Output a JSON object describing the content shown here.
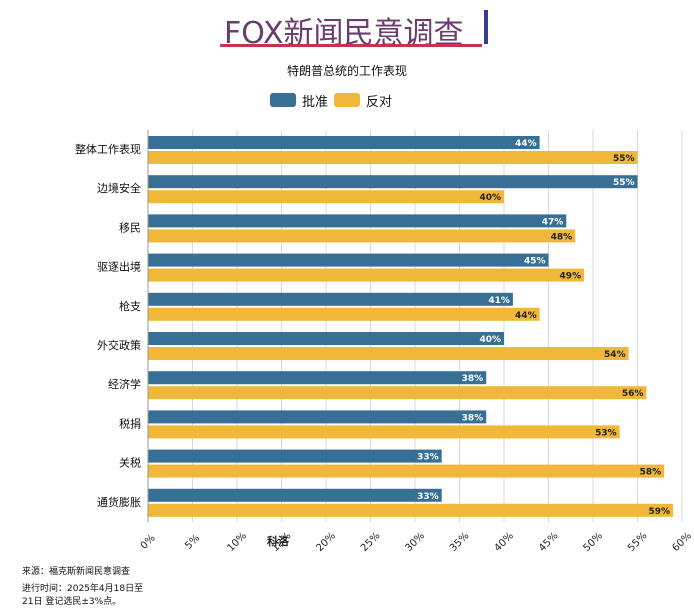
{
  "page": {
    "title": "FOX新闻民意调查",
    "source": "来源：福克斯新闻民意调查",
    "period_line1": "进行时间：2025年4月18日至",
    "period_line2": "21日 登记选民±3%点。"
  },
  "colors": {
    "approve": "#376f95",
    "disapprove": "#f0b739",
    "grid": "#d8d8d8"
  },
  "chart_data": {
    "type": "bar",
    "orientation": "horizontal",
    "title": "特朗普总统的工作表现",
    "categories": [
      "整体工作表现",
      "边境安全",
      "移民",
      "驱逐出境",
      "枪支",
      "外交政策",
      "经济学",
      "税捐",
      "关税",
      "通货膨胀"
    ],
    "series": [
      {
        "name": "批准",
        "values": [
          44,
          55,
          47,
          45,
          41,
          40,
          38,
          38,
          33,
          33
        ]
      },
      {
        "name": "反对",
        "values": [
          55,
          40,
          48,
          49,
          44,
          54,
          56,
          53,
          58,
          59
        ]
      }
    ],
    "xlim": [
      0,
      60
    ],
    "x_ticks": [
      "0%",
      "5%",
      "10%",
      "15%",
      "20%",
      "25%",
      "30%",
      "35%",
      "40%",
      "45%",
      "50%",
      "55%",
      "60%"
    ],
    "xlabel": "科洛",
    "grid": true,
    "legend_position": "top-center",
    "value_suffix": "%"
  }
}
